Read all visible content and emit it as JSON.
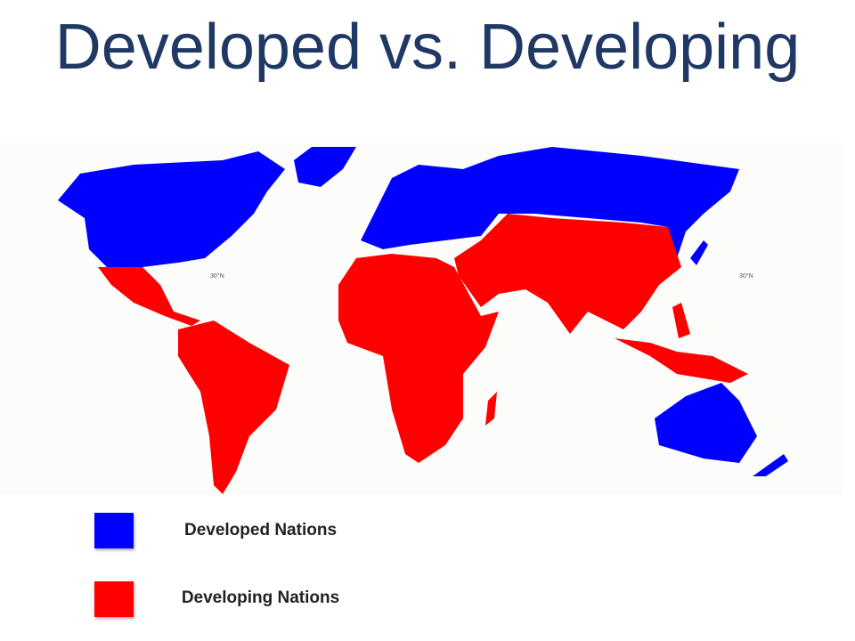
{
  "title": "Developed vs. Developing",
  "map": {
    "labels": [
      "30°N",
      "30°N"
    ]
  },
  "legend": [
    {
      "label": "Developed Nations",
      "color": "#0000ff"
    },
    {
      "label": "Developing Nations",
      "color": "#ff0000"
    }
  ]
}
